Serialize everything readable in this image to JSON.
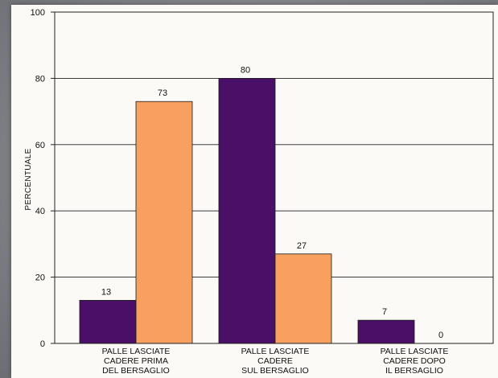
{
  "chart_data": {
    "type": "bar",
    "categories": [
      [
        "PALLE LASCIATE",
        "CADERE PRIMA",
        "DEL BERSAGLIO"
      ],
      [
        "PALLE LASCIATE",
        "CADERE",
        "SUL BERSAGLIO"
      ],
      [
        "PALLE LASCIATE",
        "CADERE DOPO",
        "IL BERSAGLIO"
      ]
    ],
    "series": [
      {
        "values": [
          13,
          80,
          7
        ],
        "color": "#4a0f66"
      },
      {
        "values": [
          73,
          27,
          0
        ],
        "color": "#f7a060"
      }
    ],
    "data_labels": [
      [
        "13",
        "80",
        "7"
      ],
      [
        "73",
        "27",
        "0"
      ]
    ],
    "ylabel": "PERCENTUALE",
    "ylim": [
      0,
      100
    ],
    "yticks": [
      0,
      20,
      40,
      60,
      80,
      100
    ],
    "ytick_labels": [
      "0",
      "20",
      "40",
      "60",
      "80",
      "100"
    ],
    "grid": true
  }
}
